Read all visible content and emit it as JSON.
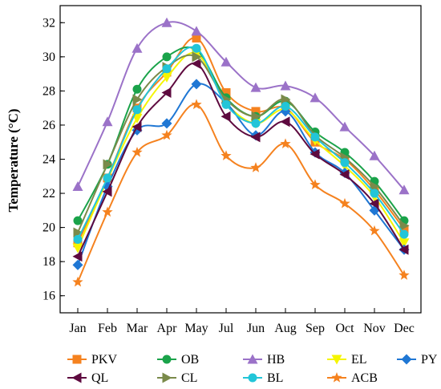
{
  "chart_data": {
    "type": "line",
    "title": "",
    "xlabel": "",
    "ylabel": "Temperature (°C)",
    "ylim": [
      15,
      33
    ],
    "yticks": [
      16,
      18,
      20,
      22,
      24,
      26,
      28,
      30,
      32
    ],
    "grid": false,
    "legend_position": "bottom",
    "categories": [
      "Jan",
      "Feb",
      "Mar",
      "Apr",
      "May",
      "Jul",
      "Jun",
      "Aug",
      "Sep",
      "Oct",
      "Nov",
      "Dec"
    ],
    "series": [
      {
        "name": "PKV",
        "color": "#f5821f",
        "marker": "square",
        "values": [
          19.1,
          22.9,
          27.0,
          29.1,
          31.1,
          27.9,
          26.8,
          27.0,
          25.0,
          24.0,
          22.2,
          19.9
        ]
      },
      {
        "name": "OB",
        "color": "#1aa34a",
        "marker": "circle",
        "values": [
          20.4,
          23.7,
          28.1,
          30.0,
          30.4,
          27.6,
          26.5,
          27.4,
          25.6,
          24.4,
          22.7,
          20.4
        ]
      },
      {
        "name": "HB",
        "color": "#9b72c8",
        "marker": "triangle-up",
        "values": [
          22.4,
          26.2,
          30.5,
          32.0,
          31.5,
          29.7,
          28.2,
          28.3,
          27.6,
          25.9,
          24.2,
          22.2
        ]
      },
      {
        "name": "EL",
        "color": "#f5f500",
        "marker": "triangle-down",
        "values": [
          18.8,
          22.8,
          26.4,
          28.8,
          30.2,
          27.3,
          26.1,
          26.9,
          25.1,
          23.6,
          21.8,
          19.1
        ]
      },
      {
        "name": "PY",
        "color": "#1f77d4",
        "marker": "diamond",
        "values": [
          17.8,
          22.4,
          25.7,
          26.1,
          28.4,
          27.3,
          25.4,
          26.8,
          24.4,
          23.2,
          21.0,
          18.7
        ]
      },
      {
        "name": "QL",
        "color": "#5e0a3f",
        "marker": "triangle-left",
        "values": [
          18.3,
          22.1,
          25.9,
          27.9,
          29.6,
          26.5,
          25.3,
          26.2,
          24.3,
          23.1,
          21.4,
          18.7
        ]
      },
      {
        "name": "CL",
        "color": "#7a8a4a",
        "marker": "triangle-right",
        "values": [
          19.7,
          23.7,
          27.5,
          29.4,
          30.0,
          27.5,
          26.5,
          27.5,
          25.4,
          24.1,
          22.4,
          20.1
        ]
      },
      {
        "name": "BL",
        "color": "#22c5d8",
        "marker": "circle",
        "values": [
          19.3,
          22.9,
          26.9,
          29.3,
          30.5,
          27.2,
          26.1,
          27.1,
          25.3,
          23.8,
          22.0,
          19.6
        ]
      },
      {
        "name": "ACB",
        "color": "#f5821f",
        "marker": "star",
        "values": [
          16.8,
          20.9,
          24.4,
          25.4,
          27.2,
          24.2,
          23.5,
          24.9,
          22.5,
          21.4,
          19.8,
          17.2
        ]
      }
    ]
  }
}
